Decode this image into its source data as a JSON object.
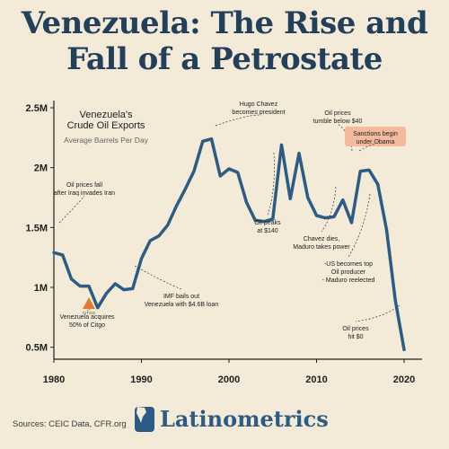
{
  "page": {
    "title_line1": "Venezuela: The Rise and",
    "title_line2": "Fall of a Petrostate",
    "sources": "Sources: CEIC Data, CFR.org",
    "brand": "Latinometrics"
  },
  "colors": {
    "background": "#f3ead7",
    "title": "#223f5c",
    "line": "#2c5c86",
    "highlight": "#f5b99c",
    "citgo": "#e07b39"
  },
  "icons": {
    "brand": "south-america-map-icon",
    "citgo": "citgo-triangle-icon"
  },
  "chart_data": {
    "type": "line",
    "title": "Venezuela's\nCrude Oil Exports",
    "subtitle": "Average Barrels Per Day",
    "xlim": [
      1980,
      2020
    ],
    "ylim": [
      0.4,
      2.5
    ],
    "x_ticks": [
      {
        "value": 1980,
        "label": "1980"
      },
      {
        "value": 1990,
        "label": "1990"
      },
      {
        "value": 2000,
        "label": "2000"
      },
      {
        "value": 2010,
        "label": "2010"
      },
      {
        "value": 2020,
        "label": "2020"
      }
    ],
    "y_ticks": [
      {
        "value": 0.5,
        "label": "0.5M"
      },
      {
        "value": 1.0,
        "label": "1M"
      },
      {
        "value": 1.5,
        "label": "1.5M"
      },
      {
        "value": 2.0,
        "label": "2M"
      },
      {
        "value": 2.5,
        "label": "2.5M"
      }
    ],
    "grid": false,
    "series": [
      {
        "x": [
          1980,
          1981,
          1982,
          1983,
          1984,
          1985,
          1986,
          1987,
          1988,
          1989,
          1990,
          1991,
          1992,
          1993,
          1994,
          1995,
          1996,
          1997,
          1998,
          1999,
          2000,
          2001,
          2002,
          2003,
          2004,
          2005,
          2006,
          2007,
          2008,
          2009,
          2010,
          2011,
          2012,
          2013,
          2014,
          2015,
          2016,
          2017,
          2018,
          2019,
          2020
        ],
        "y": [
          1.29,
          1.27,
          1.07,
          1.01,
          1.01,
          0.83,
          0.95,
          1.03,
          0.98,
          0.99,
          1.24,
          1.39,
          1.43,
          1.52,
          1.68,
          1.82,
          1.97,
          2.22,
          2.24,
          1.93,
          1.99,
          1.96,
          1.71,
          1.56,
          1.55,
          1.57,
          2.19,
          1.74,
          2.12,
          1.75,
          1.6,
          1.58,
          1.59,
          1.73,
          1.54,
          1.97,
          1.98,
          1.86,
          1.48,
          0.89,
          0.48
        ]
      }
    ],
    "annotations": [
      {
        "text": "Oil prices fall\nafter Iraq invades Iran",
        "x": 1980,
        "y": 1.29
      },
      {
        "text": "Venezuela acquires\n50% of Citgo",
        "x": 1984,
        "y": 0.72
      },
      {
        "text": "IMF bails out\nVenezuela with $4.6B loan",
        "x": 1989,
        "y": 0.99
      },
      {
        "text": "Hugo Chavez\nbecomes president",
        "x": 1998,
        "y": 2.24
      },
      {
        "text": "Oil peaks\nat $140",
        "x": 2008,
        "y": 2.12
      },
      {
        "text": "Oil prices\ntumble below $40",
        "x": 2014,
        "y": 1.97
      },
      {
        "text": "Sanctions begin\nunder Obama",
        "x": 2015,
        "y": 1.98,
        "highlight": true
      },
      {
        "text": "Chavez dies,\nMaduro takes power",
        "x": 2013,
        "y": 1.73
      },
      {
        "text": "-US becomes top\nOil producer\n- Maduro reelected",
        "x": 2018,
        "y": 1.48
      },
      {
        "text": "Oil prices\nhit $0",
        "x": 2020,
        "y": 0.48
      },
      {
        "text": "CITGO",
        "x": 1984,
        "y": 0.72
      }
    ]
  }
}
